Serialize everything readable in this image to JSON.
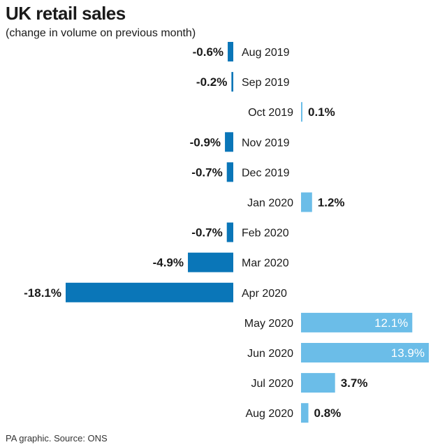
{
  "chart_data": {
    "type": "bar",
    "orientation": "horizontal",
    "title": "UK retail sales",
    "subtitle": "(change in volume on previous month)",
    "source": "PA graphic. Source: ONS",
    "unit": "%",
    "categories": [
      "Aug 2019",
      "Sep 2019",
      "Oct 2019",
      "Nov 2019",
      "Dec 2019",
      "Jan 2020",
      "Feb 2020",
      "Mar 2020",
      "Apr 2020",
      "May 2020",
      "Jun 2020",
      "Jul 2020",
      "Aug 2020"
    ],
    "values": [
      -0.6,
      -0.2,
      0.1,
      -0.9,
      -0.7,
      1.2,
      -0.7,
      -4.9,
      -18.1,
      12.1,
      13.9,
      3.7,
      0.8
    ],
    "value_labels": [
      "-0.6%",
      "-0.2%",
      "0.1%",
      "-0.9%",
      "-0.7%",
      "1.2%",
      "-0.7%",
      "-4.9%",
      "-18.1%",
      "12.1%",
      "13.9%",
      "3.7%",
      "0.8%"
    ],
    "colors": {
      "negative": "#0a76b8",
      "positive": "#6bbde8"
    },
    "xlim": [
      -18.1,
      13.9
    ]
  }
}
